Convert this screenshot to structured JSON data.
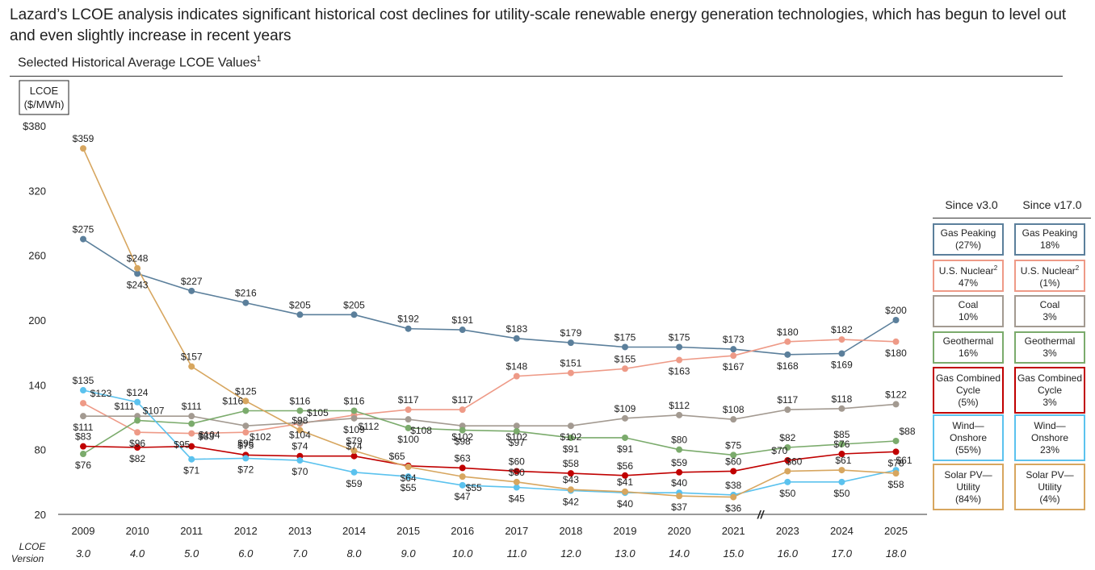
{
  "header": {
    "headline": "Lazard’s LCOE analysis indicates significant historical cost declines for utility-scale renewable energy generation technologies, which has begun to level out and even slightly increase in recent years",
    "subtitle": "Selected Historical Average LCOE Values",
    "subtitle_footnote": "1"
  },
  "chart_data": {
    "type": "line",
    "y_axis_label_line1": "LCOE",
    "y_axis_label_line2": "($/MWh)",
    "ylim": [
      20,
      380
    ],
    "yticks": [
      "$380",
      "320",
      "260",
      "200",
      "140",
      "80",
      "20"
    ],
    "ytick_values": [
      380,
      320,
      260,
      200,
      140,
      80,
      20
    ],
    "categories": [
      "2009",
      "2010",
      "2011",
      "2012",
      "2013",
      "2014",
      "2015",
      "2016",
      "2017",
      "2018",
      "2019",
      "2020",
      "2021",
      "2023",
      "2024",
      "2025"
    ],
    "versions": [
      "3.0",
      "4.0",
      "5.0",
      "6.0",
      "7.0",
      "8.0",
      "9.0",
      "10.0",
      "11.0",
      "12.0",
      "13.0",
      "14.0",
      "15.0",
      "16.0",
      "17.0",
      "18.0"
    ],
    "version_label_line1": "LCOE",
    "version_label_line2": "Version",
    "axis_break_marker": "//",
    "grid": false,
    "series": [
      {
        "key": "gas_peaking",
        "color": "#5b7f9b",
        "values": [
          275,
          243,
          227,
          216,
          205,
          205,
          192,
          191,
          183,
          179,
          175,
          175,
          173,
          168,
          169,
          200
        ],
        "labels": [
          "$275",
          "$243",
          "$227",
          "$216",
          "$205",
          "$205",
          "$192",
          "$191",
          "$183",
          "$179",
          "$175",
          "$175",
          "$173",
          "$168",
          "$169",
          "$200"
        ]
      },
      {
        "key": "us_nuclear",
        "color": "#ee9a87",
        "values": [
          123,
          96,
          95,
          96,
          104,
          112,
          117,
          117,
          148,
          151,
          155,
          163,
          167,
          180,
          182,
          180
        ],
        "labels": [
          "$123",
          "$96",
          "$95",
          "$96",
          "$104",
          "$112",
          "$117",
          "$117",
          "$148",
          "$151",
          "$155",
          "$163",
          "$167",
          "$180",
          "$182",
          "$180"
        ]
      },
      {
        "key": "coal",
        "color": "#a39a91",
        "values": [
          111,
          111,
          111,
          102,
          105,
          109,
          108,
          102,
          102,
          102,
          109,
          112,
          108,
          117,
          118,
          122
        ],
        "labels": [
          "$111",
          "$111",
          "$111",
          "$102",
          "$105",
          "$109",
          "$108",
          "$102",
          "$102",
          "$102",
          "$109",
          "$112",
          "$108",
          "$117",
          "$118",
          "$122"
        ]
      },
      {
        "key": "geothermal",
        "color": "#7bab6c",
        "values": [
          76,
          107,
          104,
          116,
          116,
          116,
          100,
          98,
          97,
          91,
          91,
          80,
          75,
          82,
          85,
          88
        ],
        "labels": [
          "$76",
          "$107",
          "$104",
          "$116",
          "$116",
          "$116",
          "$100",
          "$98",
          "$97",
          "$91",
          "$91",
          "$80",
          "$75",
          "$82",
          "$85",
          "$88"
        ]
      },
      {
        "key": "gas_cc",
        "color": "#c00000",
        "values": [
          83,
          82,
          83,
          75,
          74,
          74,
          65,
          63,
          60,
          58,
          56,
          59,
          60,
          70,
          76,
          78
        ],
        "labels": [
          "$83",
          "$82",
          "$83",
          "$75",
          "$74",
          "$74",
          "$65",
          "$63",
          "$60",
          "$58",
          "$56",
          "$59",
          "$60",
          "$70",
          "$76",
          "$78"
        ]
      },
      {
        "key": "wind",
        "color": "#5bc2ee",
        "values": [
          135,
          124,
          71,
          72,
          70,
          59,
          55,
          47,
          45,
          42,
          40,
          40,
          38,
          50,
          50,
          61
        ],
        "labels": [
          "$135",
          "$124",
          "$71",
          "$72",
          "$70",
          "$59",
          "$55",
          "$47",
          "$45",
          "$42",
          "$40",
          "$40",
          "$38",
          "$50",
          "$50",
          "$61"
        ]
      },
      {
        "key": "solar",
        "color": "#d7a65f",
        "values": [
          359,
          248,
          157,
          125,
          98,
          79,
          64,
          55,
          50,
          43,
          41,
          37,
          36,
          60,
          61,
          58
        ],
        "labels": [
          "$359",
          "$248",
          "$157",
          "$125",
          "$98",
          "$79",
          "$64",
          "$55",
          "$50",
          "$43",
          "$41",
          "$37",
          "$36",
          "$60",
          "$61",
          "$58"
        ]
      }
    ]
  },
  "table": {
    "col1_header": "Since v3.0",
    "col2_header": "Since v17.0",
    "rows": [
      {
        "key": "gas_peaking",
        "color": "#5b7f9b",
        "name": "Gas Peaking",
        "since_v3": "(27%)",
        "since_v17": "18%"
      },
      {
        "key": "us_nuclear",
        "color": "#ee9a87",
        "name": "U.S. Nuclear",
        "footnote": "2",
        "since_v3": "47%",
        "since_v17": "(1%)"
      },
      {
        "key": "coal",
        "color": "#a39a91",
        "name": "Coal",
        "since_v3": "10%",
        "since_v17": "3%"
      },
      {
        "key": "geothermal",
        "color": "#7bab6c",
        "name": "Geothermal",
        "since_v3": "16%",
        "since_v17": "3%"
      },
      {
        "key": "gas_cc",
        "color": "#c00000",
        "name_line1": "Gas Combined",
        "name_line2": "Cycle",
        "since_v3": "(5%)",
        "since_v17": "3%"
      },
      {
        "key": "wind",
        "color": "#5bc2ee",
        "name_line1": "Wind—",
        "name_line2": "Onshore",
        "since_v3": "(55%)",
        "since_v17": "23%"
      },
      {
        "key": "solar",
        "color": "#d7a65f",
        "name_line1": "Solar PV—",
        "name_line2": "Utility",
        "since_v3": "(84%)",
        "since_v17": "(4%)"
      }
    ]
  }
}
